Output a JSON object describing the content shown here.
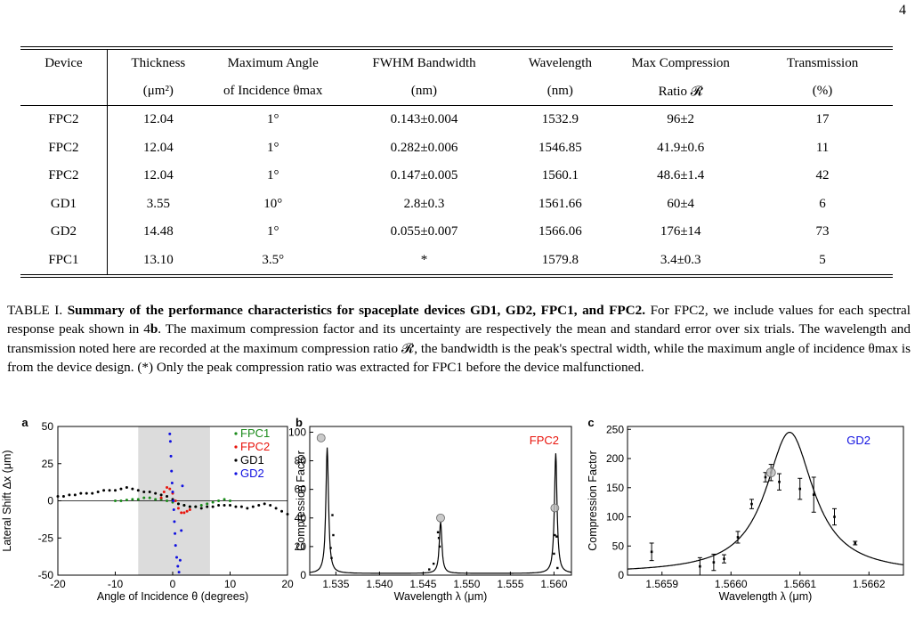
{
  "page_number": "4",
  "table": {
    "header_row1": [
      "Device",
      "Thickness",
      "Maximum Angle",
      "FWHM Bandwidth",
      "Wavelength",
      "Max Compression",
      "Transmission"
    ],
    "header_row2": [
      "",
      "(μm²)",
      "of Incidence θmax",
      "(nm)",
      "(nm)",
      "Ratio 𝓡",
      "(%)"
    ],
    "rows": [
      [
        "FPC2",
        "12.04",
        "1°",
        "0.143±0.004",
        "1532.9",
        "96±2",
        "17"
      ],
      [
        "FPC2",
        "12.04",
        "1°",
        "0.282±0.006",
        "1546.85",
        "41.9±0.6",
        "11"
      ],
      [
        "FPC2",
        "12.04",
        "1°",
        "0.147±0.005",
        "1560.1",
        "48.6±1.4",
        "42"
      ],
      [
        "GD1",
        "3.55",
        "10°",
        "2.8±0.3",
        "1561.66",
        "60±4",
        "6"
      ],
      [
        "GD2",
        "14.48",
        "1°",
        "0.055±0.007",
        "1566.06",
        "176±14",
        "73"
      ],
      [
        "FPC1",
        "13.10",
        "3.5°",
        "*",
        "1579.8",
        "3.4±0.3",
        "5"
      ]
    ]
  },
  "caption": {
    "label": "TABLE I.",
    "title": "Summary of the performance characteristics for spaceplate devices GD1, GD2, FPC1, and FPC2.",
    "part1": "For FPC2, we include values for each spectral response peak shown in 4",
    "bold_ref": "b",
    "part2": ". The maximum compression factor and its uncertainty are respectively the mean and standard error over six trials. The wavelength and transmission noted here are recorded at the maximum compression ratio 𝓡, the bandwidth is the peak's spectral width, while the maximum angle of incidence θmax is from the device design. (*) Only the peak compression ratio was extracted for FPC1 before the device malfunctioned."
  },
  "figure": {
    "panels": [
      {
        "letter": "a",
        "xlabel": "Angle of Incidence θ (degrees)",
        "ylabel": "Lateral Shift Δx (μm)",
        "xticks": [
          "-20",
          "-10",
          "0",
          "10",
          "20"
        ],
        "yticks": [
          "50",
          "25",
          "0",
          "-25",
          "-50"
        ],
        "legend": [
          {
            "name": "FPC1",
            "color": "#1a8a1a"
          },
          {
            "name": "FPC2",
            "color": "#e8140c"
          },
          {
            "name": "GD1",
            "color": "#000000"
          },
          {
            "name": "GD2",
            "color": "#1010e0"
          }
        ],
        "shaded_range_deg": [
          -6,
          6.5
        ]
      },
      {
        "letter": "b",
        "label": "FPC2",
        "label_color": "#e8140c",
        "xlabel": "Wavelength λ (μm)",
        "ylabel": "Compression Factor",
        "xticks": [
          "1.535",
          "1.540",
          "1.545",
          "1.550",
          "1.555",
          "1.560"
        ],
        "yticks": [
          "100",
          "80",
          "60",
          "40",
          "20",
          "0"
        ]
      },
      {
        "letter": "c",
        "label": "GD2",
        "label_color": "#1010e0",
        "xlabel": "Wavelength λ (μm)",
        "ylabel": "Compression Factor",
        "xticks": [
          "1.5659",
          "1.5660",
          "1.5661",
          "1.5662"
        ],
        "yticks": [
          "250",
          "200",
          "150",
          "100",
          "50",
          "0"
        ]
      }
    ]
  },
  "chart_data": [
    {
      "type": "scatter",
      "xlim": [
        -20,
        20
      ],
      "ylim": [
        -50,
        50
      ],
      "series": [
        {
          "name": "FPC1",
          "x": [
            -10,
            -9,
            -8,
            -7,
            -6,
            -5,
            -4,
            -3,
            -2,
            -1,
            0,
            1,
            2,
            3,
            4,
            5,
            6,
            7,
            8,
            9,
            10
          ],
          "y": [
            0,
            0,
            0.5,
            1,
            1,
            2,
            2,
            1,
            1,
            0,
            -1,
            -2,
            -3,
            -4,
            -4,
            -3,
            -2,
            -1,
            0,
            1,
            0
          ]
        },
        {
          "name": "FPC2",
          "x": [
            -2,
            -1.5,
            -1,
            -0.5,
            0,
            0.5,
            1,
            1.5,
            2,
            2.5,
            3
          ],
          "y": [
            2,
            6,
            9,
            8,
            5,
            0,
            -5,
            -8,
            -8,
            -7,
            -6
          ]
        },
        {
          "name": "GD1",
          "x": [
            -20,
            -19,
            -18,
            -17,
            -16,
            -15,
            -14,
            -13,
            -12,
            -11,
            -10,
            -9,
            -8,
            -7,
            -6,
            -5,
            -4,
            -3,
            -2,
            -1,
            0,
            1,
            2,
            3,
            4,
            5,
            6,
            7,
            8,
            9,
            10,
            11,
            12,
            13,
            14,
            15,
            16,
            17,
            18,
            19,
            20
          ],
          "y": [
            3,
            3,
            4,
            4,
            5,
            5,
            5,
            6,
            7,
            7,
            7,
            8,
            9,
            8,
            7,
            6,
            6,
            5,
            4,
            3,
            1,
            -2,
            -3,
            -4,
            -4,
            -5,
            -4,
            -4,
            -3,
            -3,
            -3,
            -4,
            -4,
            -5,
            -4,
            -3,
            -2,
            -3,
            -5,
            -7,
            -9
          ]
        },
        {
          "name": "GD2",
          "x": [
            -0.5,
            -0.4,
            -0.3,
            -0.2,
            -0.1,
            0,
            0.1,
            0.2,
            0.3,
            0.4,
            0.5,
            0.7,
            0.9,
            1.1,
            1.3,
            1.5,
            1.7
          ],
          "y": [
            45,
            40,
            30,
            20,
            12,
            6,
            0,
            -6,
            -14,
            -22,
            -30,
            -38,
            -44,
            -48,
            -40,
            -20,
            10
          ]
        }
      ]
    },
    {
      "type": "line",
      "xlim": [
        1.532,
        1.562
      ],
      "ylim": [
        0,
        104
      ],
      "peaks": [
        {
          "center": 1.534,
          "height": 88
        },
        {
          "center": 1.547,
          "height": 36
        },
        {
          "center": 1.5602,
          "height": 84
        }
      ],
      "max_markers": [
        {
          "x": 1.5333,
          "y": 96
        },
        {
          "x": 1.547,
          "y": 40
        },
        {
          "x": 1.5601,
          "y": 47
        }
      ]
    },
    {
      "type": "line",
      "xlim": [
        1.56585,
        1.56625
      ],
      "ylim": [
        0,
        255
      ],
      "peak": {
        "center": 1.566085,
        "height": 242
      },
      "points": [
        {
          "x": 1.565885,
          "y": 40,
          "err": 15
        },
        {
          "x": 1.565955,
          "y": 15,
          "err": 15
        },
        {
          "x": 1.565975,
          "y": 22,
          "err": 14
        },
        {
          "x": 1.56599,
          "y": 28,
          "err": 7
        },
        {
          "x": 1.56601,
          "y": 65,
          "err": 10
        },
        {
          "x": 1.56603,
          "y": 122,
          "err": 8
        },
        {
          "x": 1.56605,
          "y": 168,
          "err": 8
        },
        {
          "x": 1.566058,
          "y": 176,
          "err": 14
        },
        {
          "x": 1.56607,
          "y": 160,
          "err": 14
        },
        {
          "x": 1.5661,
          "y": 148,
          "err": 18
        },
        {
          "x": 1.56612,
          "y": 138,
          "err": 30
        },
        {
          "x": 1.56615,
          "y": 100,
          "err": 14
        },
        {
          "x": 1.56618,
          "y": 55,
          "err": 3
        }
      ],
      "max_marker": {
        "x": 1.566058,
        "y": 176
      }
    }
  ]
}
